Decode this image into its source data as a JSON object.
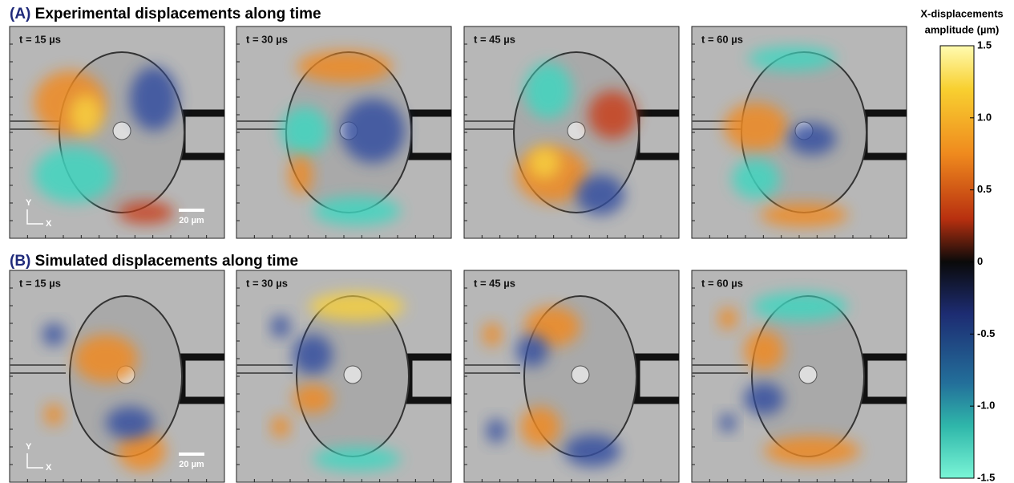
{
  "panels": [
    {
      "label": "(A)",
      "title": "Experimental displacements along time",
      "frames": [
        "t = 15 µs",
        "t = 30 µs",
        "t = 45 µs",
        "t = 60 µs"
      ],
      "scale_bar": "20 µm",
      "axis_y": "Y",
      "axis_x": "X"
    },
    {
      "label": "(B)",
      "title": "Simulated displacements along time",
      "frames": [
        "t = 15 µs",
        "t = 30 µs",
        "t = 45 µs",
        "t = 60 µs"
      ],
      "scale_bar": "20 µm",
      "axis_y": "Y",
      "axis_x": "X"
    }
  ],
  "colorbar": {
    "title": [
      "X-displacements",
      "amplitude (µm)"
    ],
    "lim": [
      -1.5,
      1.5
    ],
    "ticks": [
      1.5,
      {
        "value": 1.0,
        "label": "1.0"
      },
      0.5,
      0,
      -0.5,
      {
        "value": -1.0,
        "label": "-1.0"
      },
      -1.5
    ]
  }
}
